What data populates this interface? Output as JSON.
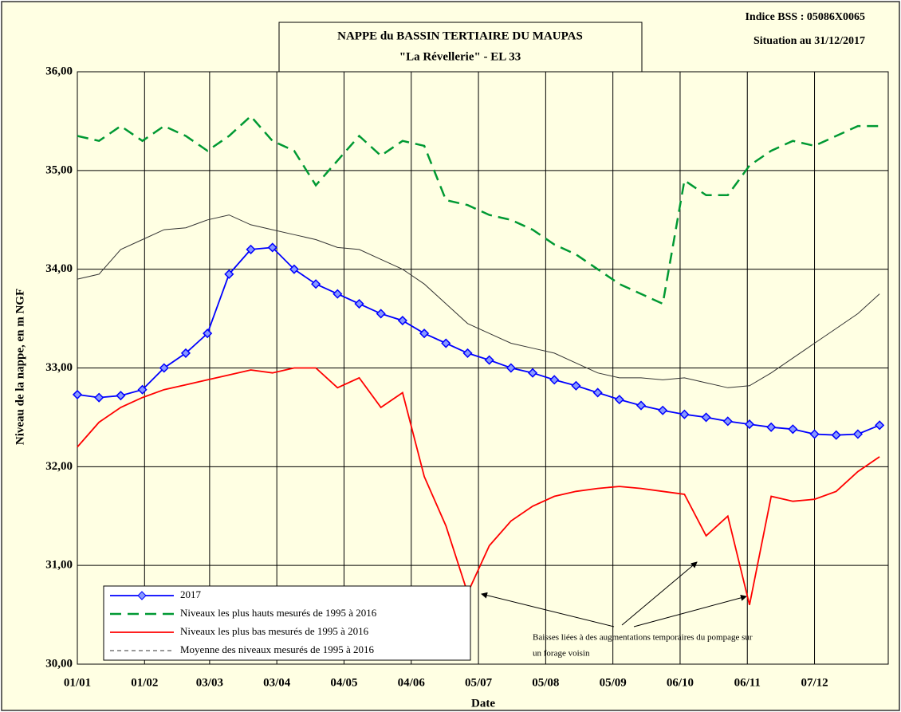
{
  "chart_data": {
    "type": "line",
    "title": "NAPPE du BASSIN TERTIAIRE DU MAUPAS",
    "subtitle": "\"La Révellerie\" - EL 33",
    "info": [
      "Indice BSS : 05086X0065",
      "Situation au 31/12/2017"
    ],
    "x_label": "Date",
    "y_label": "Niveau de la nappe, en m NGF",
    "annotation": [
      "Baisses liées à des augmentations temporaires du pompage sur",
      "un forage voisin"
    ],
    "x": [
      0,
      10,
      20,
      30,
      40,
      50,
      60,
      70,
      80,
      90,
      100,
      110,
      120,
      130,
      140,
      150,
      160,
      170,
      180,
      190,
      200,
      210,
      220,
      230,
      240,
      250,
      260,
      270,
      280,
      290,
      300,
      310,
      320,
      330,
      340,
      350,
      360,
      370
    ],
    "series": [
      {
        "name": "2017",
        "color": "#0000ff",
        "style": "solid",
        "marker": "diamond",
        "values": [
          32.73,
          32.7,
          32.72,
          32.78,
          33.0,
          33.15,
          33.35,
          33.95,
          34.2,
          34.22,
          34.0,
          33.85,
          33.75,
          33.65,
          33.55,
          33.48,
          33.35,
          33.25,
          33.15,
          33.08,
          33.0,
          32.95,
          32.88,
          32.82,
          32.75,
          32.68,
          32.62,
          32.57,
          32.53,
          32.5,
          32.46,
          32.43,
          32.4,
          32.38,
          32.33,
          32.32,
          32.33,
          32.42
        ]
      },
      {
        "name": "Niveaux les plus hauts mesurés de 1995 à 2016",
        "color": "#009933",
        "style": "dashed",
        "values": [
          35.35,
          35.3,
          35.45,
          35.3,
          35.45,
          35.35,
          35.2,
          35.35,
          35.55,
          35.3,
          35.2,
          34.85,
          35.1,
          35.35,
          35.15,
          35.3,
          35.25,
          34.7,
          34.65,
          34.55,
          34.5,
          34.4,
          34.25,
          34.15,
          34.0,
          33.85,
          33.75,
          33.65,
          34.9,
          34.75,
          34.75,
          35.05,
          35.2,
          35.3,
          35.25,
          35.35,
          35.45,
          35.45
        ]
      },
      {
        "name": "Niveaux les plus bas mesurés de 1995 à 2016",
        "color": "#ff0000",
        "style": "solid",
        "values": [
          32.2,
          32.45,
          32.6,
          32.7,
          32.78,
          32.83,
          32.88,
          32.93,
          32.98,
          32.95,
          33.0,
          33.0,
          32.8,
          32.9,
          32.6,
          32.75,
          31.9,
          31.4,
          30.72,
          31.2,
          31.45,
          31.6,
          31.7,
          31.75,
          31.78,
          31.8,
          31.78,
          31.75,
          31.72,
          31.3,
          31.5,
          30.6,
          31.7,
          31.65,
          31.67,
          31.75,
          31.95,
          32.1
        ]
      },
      {
        "name": "Moyenne des niveaux mesurés de 1995 à 2016",
        "color": "#333333",
        "style": "thin",
        "values": [
          33.9,
          33.95,
          34.2,
          34.3,
          34.4,
          34.42,
          34.5,
          34.55,
          34.45,
          34.4,
          34.35,
          34.3,
          34.22,
          34.2,
          34.1,
          34.0,
          33.85,
          33.65,
          33.45,
          33.35,
          33.25,
          33.2,
          33.15,
          33.05,
          32.95,
          32.9,
          32.9,
          32.88,
          32.9,
          32.85,
          32.8,
          32.82,
          32.95,
          33.1,
          33.25,
          33.4,
          33.55,
          33.75
        ]
      }
    ],
    "xlim": [
      0,
      374
    ],
    "xticks": [
      {
        "value": 0,
        "label": "01/01"
      },
      {
        "value": 31,
        "label": "01/02"
      },
      {
        "value": 61,
        "label": "03/03"
      },
      {
        "value": 92,
        "label": "03/04"
      },
      {
        "value": 123,
        "label": "04/05"
      },
      {
        "value": 154,
        "label": "04/06"
      },
      {
        "value": 185,
        "label": "05/07"
      },
      {
        "value": 216,
        "label": "05/08"
      },
      {
        "value": 247,
        "label": "05/09"
      },
      {
        "value": 278,
        "label": "06/10"
      },
      {
        "value": 309,
        "label": "06/11"
      },
      {
        "value": 340,
        "label": "07/12"
      }
    ],
    "ylim": [
      30,
      36
    ],
    "yticks": [
      {
        "value": 30,
        "label": "30,00"
      },
      {
        "value": 31,
        "label": "31,00"
      },
      {
        "value": 32,
        "label": "32,00"
      },
      {
        "value": 33,
        "label": "33,00"
      },
      {
        "value": 34,
        "label": "34,00"
      },
      {
        "value": 35,
        "label": "35,00"
      },
      {
        "value": 36,
        "label": "36,00"
      }
    ],
    "grid": true,
    "legend": "lower left"
  }
}
